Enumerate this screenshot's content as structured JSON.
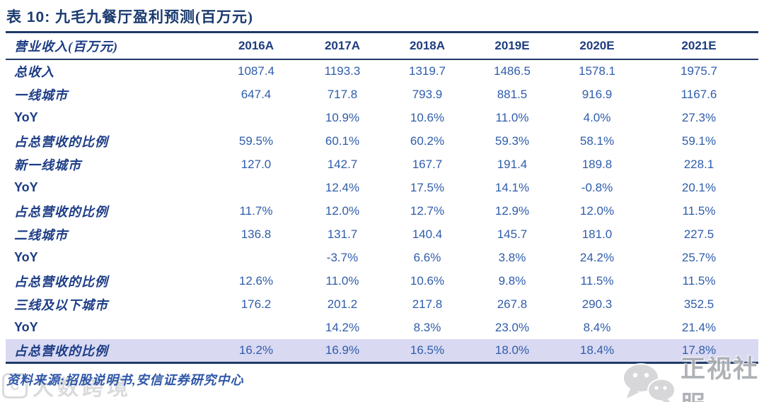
{
  "title": {
    "prefix": "表 10:",
    "text": "九毛九餐厅盈利预测(百万元)"
  },
  "table": {
    "header": [
      "营业收入(百万元)",
      "2016A",
      "2017A",
      "2018A",
      "2019E",
      "2020E",
      "2021E"
    ],
    "rows": [
      {
        "label": "总收入",
        "values": [
          "1087.4",
          "1193.3",
          "1319.7",
          "1486.5",
          "1578.1",
          "1975.7"
        ],
        "highlight": false
      },
      {
        "label": "一线城市",
        "values": [
          "647.4",
          "717.8",
          "793.9",
          "881.5",
          "916.9",
          "1167.6"
        ],
        "highlight": false
      },
      {
        "label": "YoY",
        "values": [
          "",
          "10.9%",
          "10.6%",
          "11.0%",
          "4.0%",
          "27.3%"
        ],
        "highlight": false
      },
      {
        "label": "占总营收的比例",
        "values": [
          "59.5%",
          "60.1%",
          "60.2%",
          "59.3%",
          "58.1%",
          "59.1%"
        ],
        "highlight": false
      },
      {
        "label": "新一线城市",
        "values": [
          "127.0",
          "142.7",
          "167.7",
          "191.4",
          "189.8",
          "228.1"
        ],
        "highlight": false
      },
      {
        "label": "YoY",
        "values": [
          "",
          "12.4%",
          "17.5%",
          "14.1%",
          "-0.8%",
          "20.1%"
        ],
        "highlight": false
      },
      {
        "label": "占总营收的比例",
        "values": [
          "11.7%",
          "12.0%",
          "12.7%",
          "12.9%",
          "12.0%",
          "11.5%"
        ],
        "highlight": false
      },
      {
        "label": "二线城市",
        "values": [
          "136.8",
          "131.7",
          "140.4",
          "145.7",
          "181.0",
          "227.5"
        ],
        "highlight": false
      },
      {
        "label": "YoY",
        "values": [
          "",
          "-3.7%",
          "6.6%",
          "3.8%",
          "24.2%",
          "25.7%"
        ],
        "highlight": false
      },
      {
        "label": "占总营收的比例",
        "values": [
          "12.6%",
          "11.0%",
          "10.6%",
          "9.8%",
          "11.5%",
          "11.5%"
        ],
        "highlight": false
      },
      {
        "label": "三线及以下城市",
        "values": [
          "176.2",
          "201.2",
          "217.8",
          "267.8",
          "290.3",
          "352.5"
        ],
        "highlight": false
      },
      {
        "label": "YoY",
        "values": [
          "",
          "14.2%",
          "8.3%",
          "23.0%",
          "8.4%",
          "21.4%"
        ],
        "highlight": false
      },
      {
        "label": "占总营收的比例",
        "values": [
          "16.2%",
          "16.9%",
          "16.5%",
          "18.0%",
          "18.4%",
          "17.8%"
        ],
        "highlight": true
      }
    ]
  },
  "footer": {
    "source": "资料来源:招股说明书,安信证券研究中心"
  },
  "watermarks": {
    "left_badge_glyph": "C",
    "left_text": "大数跨境",
    "right_text": "正视社服",
    "right_icon": "wechat-icon"
  },
  "colors": {
    "accent_navy": "#1e3a68",
    "title_navy": "#1a3a6e",
    "header_year_navy": "#1e3c80",
    "label_navy": "#1c3c85",
    "number_blue": "#2f5dab",
    "highlight_row": "#d9d9f2",
    "footer_blue": "#2f57a8",
    "watermark_gray": "#b5b8bd"
  }
}
